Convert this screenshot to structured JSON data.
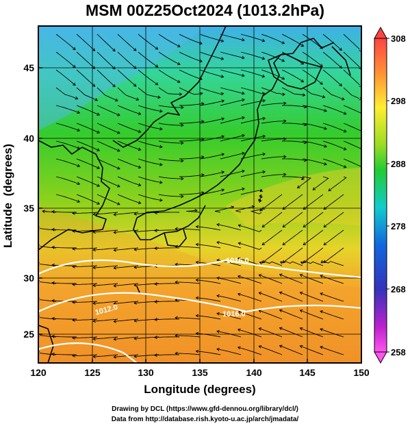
{
  "title": "MSM 00Z25Oct2024 (1013.2hPa)",
  "axes": {
    "xlabel": "Longitude (degrees)",
    "ylabel": "Latitude  (degrees)",
    "xlim": [
      120,
      150
    ],
    "ylim": [
      22.5,
      47.5
    ],
    "xticks": [
      "120",
      "125",
      "130",
      "135",
      "140",
      "145",
      "150"
    ],
    "yticks": [
      "25",
      "30",
      "35",
      "40",
      "45"
    ]
  },
  "colorbar": {
    "min": 258,
    "max": 308,
    "ticks": [
      "308",
      "298",
      "288",
      "278",
      "268",
      "258"
    ],
    "colors": [
      "#ff4444",
      "#ff9933",
      "#ffee33",
      "#99dd22",
      "#22cc33",
      "#11cccc",
      "#1166dd",
      "#3333bb",
      "#bb22cc",
      "#ff55ee"
    ]
  },
  "isobar_labels": [
    "1016.0",
    "1016.0",
    "1012.0"
  ],
  "footer": {
    "drawing": "Drawing by DCL (https://www.gfd-dennou.org/library/dcl/)",
    "data_source": "Data from http://database.rish.kyoto-u.ac.jp/arch/jmadata/"
  }
}
